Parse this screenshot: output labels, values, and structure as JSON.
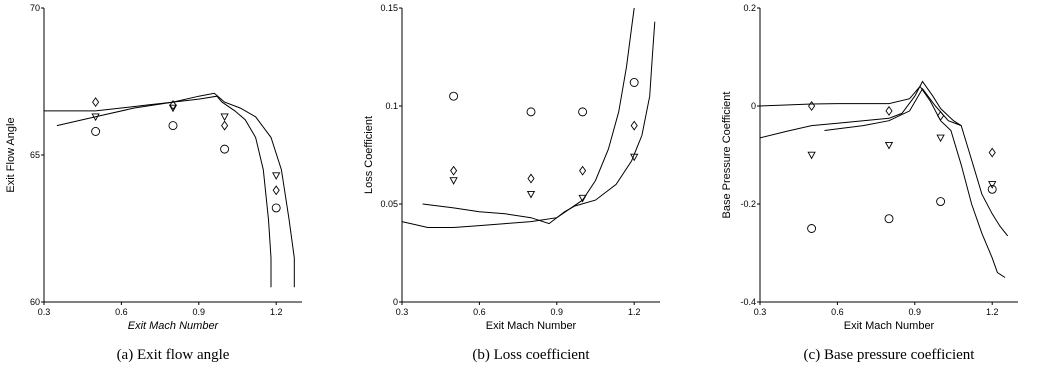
{
  "chart_data": [
    {
      "type": "line",
      "caption": "(a) Exit flow angle",
      "xlabel": "Exit Mach Number",
      "ylabel": "Exit Flow Angle",
      "xlim": [
        0.3,
        1.3
      ],
      "ylim": [
        60,
        70
      ],
      "xticks": [
        0.3,
        0.6,
        0.9,
        1.2
      ],
      "yticks": [
        60,
        65,
        70
      ],
      "grid": false,
      "series": [
        {
          "kind": "line",
          "x": [
            0.3,
            0.4,
            0.5,
            0.6,
            0.7,
            0.8,
            0.9,
            0.97,
            0.99,
            1.04,
            1.08,
            1.12,
            1.15,
            1.17,
            1.18,
            1.18
          ],
          "y": [
            66.5,
            66.5,
            66.5,
            66.6,
            66.7,
            66.8,
            66.9,
            67.0,
            66.8,
            66.5,
            66.2,
            65.6,
            64.5,
            62.8,
            61.5,
            60.5
          ]
        },
        {
          "kind": "line",
          "x": [
            0.35,
            0.5,
            0.65,
            0.8,
            0.9,
            0.96,
            1.0,
            1.06,
            1.12,
            1.18,
            1.22,
            1.25,
            1.27,
            1.27
          ],
          "y": [
            66.0,
            66.3,
            66.6,
            66.8,
            67.0,
            67.1,
            66.8,
            66.6,
            66.3,
            65.6,
            64.5,
            62.8,
            61.5,
            60.5
          ]
        },
        {
          "kind": "marker",
          "marker": "diamond",
          "x": [
            0.5,
            0.8,
            1.0,
            1.2
          ],
          "y": [
            66.8,
            66.7,
            66.0,
            63.8
          ]
        },
        {
          "kind": "marker",
          "marker": "triangle",
          "x": [
            0.5,
            0.8,
            1.0,
            1.2
          ],
          "y": [
            66.3,
            66.6,
            66.3,
            64.3
          ]
        },
        {
          "kind": "marker",
          "marker": "circle",
          "x": [
            0.5,
            0.8,
            1.0,
            1.2
          ],
          "y": [
            65.8,
            66.0,
            65.2,
            63.2
          ]
        }
      ]
    },
    {
      "type": "line",
      "caption": "(b) Loss coefficient",
      "xlabel": "Exit Mach Number",
      "ylabel": "Loss Coefficient",
      "xlim": [
        0.3,
        1.3
      ],
      "ylim": [
        0,
        0.15
      ],
      "xticks": [
        0.3,
        0.6,
        0.9,
        1.2
      ],
      "yticks": [
        0,
        0.05,
        0.1,
        0.15
      ],
      "ytick_labels": [
        "0",
        "0.05",
        "0.1",
        "0.15"
      ],
      "grid": false,
      "series": [
        {
          "kind": "line",
          "x": [
            0.3,
            0.4,
            0.5,
            0.6,
            0.7,
            0.8,
            0.9,
            1.0,
            1.05,
            1.1,
            1.14,
            1.17,
            1.19,
            1.2
          ],
          "y": [
            0.041,
            0.038,
            0.038,
            0.039,
            0.04,
            0.041,
            0.043,
            0.052,
            0.062,
            0.078,
            0.097,
            0.12,
            0.14,
            0.15
          ]
        },
        {
          "kind": "line",
          "x": [
            0.38,
            0.5,
            0.6,
            0.7,
            0.8,
            0.87,
            0.93,
            0.97,
            1.05,
            1.13,
            1.19,
            1.23,
            1.26,
            1.27,
            1.28
          ],
          "y": [
            0.05,
            0.048,
            0.046,
            0.045,
            0.043,
            0.04,
            0.046,
            0.049,
            0.052,
            0.06,
            0.072,
            0.085,
            0.105,
            0.125,
            0.143
          ]
        },
        {
          "kind": "marker",
          "marker": "circle",
          "x": [
            0.5,
            0.8,
            1.0,
            1.2
          ],
          "y": [
            0.105,
            0.097,
            0.097,
            0.112
          ]
        },
        {
          "kind": "marker",
          "marker": "diamond",
          "x": [
            0.5,
            0.8,
            1.0,
            1.2
          ],
          "y": [
            0.067,
            0.063,
            0.067,
            0.09
          ]
        },
        {
          "kind": "marker",
          "marker": "triangle",
          "x": [
            0.5,
            0.8,
            1.0,
            1.2
          ],
          "y": [
            0.062,
            0.055,
            0.053,
            0.074
          ]
        }
      ]
    },
    {
      "type": "line",
      "caption": "(c) Base pressure coefficient",
      "xlabel": "Exit Mach Number",
      "ylabel": "Base Pressure Coefficient",
      "xlim": [
        0.3,
        1.3
      ],
      "ylim": [
        -0.4,
        0.2
      ],
      "xticks": [
        0.3,
        0.6,
        0.9,
        1.2
      ],
      "yticks": [
        -0.4,
        -0.2,
        0,
        0.2
      ],
      "ytick_labels": [
        "-0.4",
        "-0.2",
        "0",
        "0.2"
      ],
      "grid": false,
      "series": [
        {
          "kind": "line",
          "x": [
            0.3,
            0.4,
            0.5,
            0.6,
            0.7,
            0.8,
            0.85,
            0.9,
            0.93,
            0.97,
            1.0,
            1.05,
            1.08,
            1.12,
            1.16,
            1.2,
            1.23,
            1.26
          ],
          "y": [
            -0.065,
            -0.052,
            -0.04,
            -0.035,
            -0.03,
            -0.025,
            -0.015,
            0.02,
            0.05,
            0.02,
            -0.005,
            -0.03,
            -0.04,
            -0.11,
            -0.18,
            -0.22,
            -0.245,
            -0.265
          ]
        },
        {
          "kind": "line",
          "x": [
            0.3,
            0.4,
            0.5,
            0.6,
            0.7,
            0.8,
            0.88,
            0.92,
            0.96,
            1.0,
            1.04,
            1.08,
            1.12,
            1.16,
            1.2,
            1.22,
            1.25
          ],
          "y": [
            0.0,
            0.002,
            0.004,
            0.005,
            0.005,
            0.005,
            0.015,
            0.04,
            0.01,
            -0.03,
            -0.05,
            -0.12,
            -0.2,
            -0.26,
            -0.31,
            -0.34,
            -0.35
          ]
        },
        {
          "kind": "line",
          "x": [
            0.55,
            0.7,
            0.8,
            0.88,
            0.93,
            0.98,
            1.03,
            1.08
          ],
          "y": [
            -0.05,
            -0.04,
            -0.03,
            -0.01,
            0.035,
            0.0,
            -0.03,
            -0.04
          ]
        },
        {
          "kind": "marker",
          "marker": "diamond",
          "x": [
            0.5,
            0.8,
            1.0,
            1.2
          ],
          "y": [
            0.0,
            -0.01,
            -0.02,
            -0.095
          ]
        },
        {
          "kind": "marker",
          "marker": "triangle",
          "x": [
            0.5,
            0.8,
            1.0,
            1.2
          ],
          "y": [
            -0.1,
            -0.08,
            -0.065,
            -0.16
          ]
        },
        {
          "kind": "marker",
          "marker": "circle",
          "x": [
            0.5,
            0.8,
            1.0,
            1.2
          ],
          "y": [
            -0.25,
            -0.23,
            -0.195,
            -0.17
          ]
        }
      ]
    }
  ]
}
